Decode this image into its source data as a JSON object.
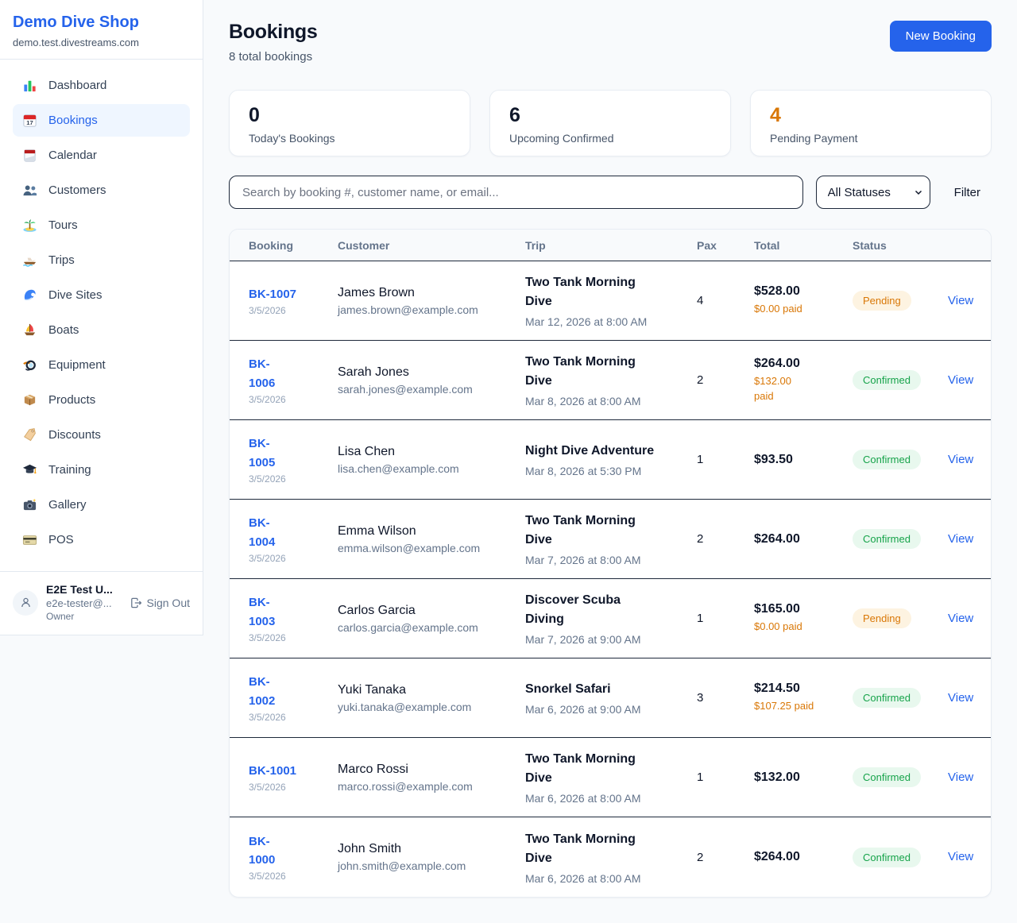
{
  "colors": {
    "accent": "#2563eb",
    "pending": "#d97706",
    "confirmed": "#16a34a"
  },
  "sidebar": {
    "brand": {
      "name": "Demo Dive Shop",
      "domain": "demo.test.divestreams.com"
    },
    "nav": [
      {
        "icon": "dashboard",
        "label": "Dashboard",
        "active": false
      },
      {
        "icon": "bookings",
        "label": "Bookings",
        "active": true
      },
      {
        "icon": "calendar",
        "label": "Calendar",
        "active": false
      },
      {
        "icon": "customers",
        "label": "Customers",
        "active": false
      },
      {
        "icon": "tours",
        "label": "Tours",
        "active": false
      },
      {
        "icon": "trips",
        "label": "Trips",
        "active": false
      },
      {
        "icon": "dive-sites",
        "label": "Dive Sites",
        "active": false
      },
      {
        "icon": "boats",
        "label": "Boats",
        "active": false
      },
      {
        "icon": "equipment",
        "label": "Equipment",
        "active": false
      },
      {
        "icon": "products",
        "label": "Products",
        "active": false
      },
      {
        "icon": "discounts",
        "label": "Discounts",
        "active": false
      },
      {
        "icon": "training",
        "label": "Training",
        "active": false
      },
      {
        "icon": "gallery",
        "label": "Gallery",
        "active": false
      },
      {
        "icon": "pos",
        "label": "POS",
        "active": false
      }
    ],
    "user": {
      "name": "E2E Test U...",
      "email": "e2e-tester@...",
      "role": "Owner",
      "signout_label": "Sign Out"
    }
  },
  "header": {
    "title": "Bookings",
    "subtitle": "8 total bookings",
    "new_booking_label": "New Booking"
  },
  "stats": [
    {
      "value": "0",
      "label": "Today's Bookings",
      "tone": ""
    },
    {
      "value": "6",
      "label": "Upcoming Confirmed",
      "tone": ""
    },
    {
      "value": "4",
      "label": "Pending Payment",
      "tone": "highlight"
    }
  ],
  "filters": {
    "search_placeholder": "Search by booking #, customer name, or email...",
    "status_selected": "All Statuses",
    "filter_label": "Filter"
  },
  "table": {
    "columns": [
      "Booking",
      "Customer",
      "Trip",
      "Pax",
      "Total",
      "Status"
    ],
    "view_label": "View",
    "rows": [
      {
        "id": "BK-1007",
        "date": "3/5/2026",
        "name": "James Brown",
        "email": "james.brown@example.com",
        "trip": "Two Tank Morning\nDive",
        "trip_datetime": "Mar 12, 2026 at 8:00 AM",
        "pax": "4",
        "total": "$528.00",
        "paid": "$0.00 paid",
        "status": "Pending",
        "status_type": "pending"
      },
      {
        "id": "BK-\n1006",
        "date": "3/5/2026",
        "name": "Sarah Jones",
        "email": "sarah.jones@example.com",
        "trip": "Two Tank Morning\nDive",
        "trip_datetime": "Mar 8, 2026 at 8:00 AM",
        "pax": "2",
        "total": "$264.00",
        "paid": "$132.00\npaid",
        "status": "Confirmed",
        "status_type": "confirmed"
      },
      {
        "id": "BK-\n1005",
        "date": "3/5/2026",
        "name": "Lisa Chen",
        "email": "lisa.chen@example.com",
        "trip": "Night Dive Adventure",
        "trip_datetime": "Mar 8, 2026 at 5:30 PM",
        "pax": "1",
        "total": "$93.50",
        "paid": "",
        "status": "Confirmed",
        "status_type": "confirmed"
      },
      {
        "id": "BK-\n1004",
        "date": "3/5/2026",
        "name": "Emma Wilson",
        "email": "emma.wilson@example.com",
        "trip": "Two Tank Morning\nDive",
        "trip_datetime": "Mar 7, 2026 at 8:00 AM",
        "pax": "2",
        "total": "$264.00",
        "paid": "",
        "status": "Confirmed",
        "status_type": "confirmed"
      },
      {
        "id": "BK-\n1003",
        "date": "3/5/2026",
        "name": "Carlos Garcia",
        "email": "carlos.garcia@example.com",
        "trip": "Discover Scuba\nDiving",
        "trip_datetime": "Mar 7, 2026 at 9:00 AM",
        "pax": "1",
        "total": "$165.00",
        "paid": "$0.00 paid",
        "status": "Pending",
        "status_type": "pending"
      },
      {
        "id": "BK-\n1002",
        "date": "3/5/2026",
        "name": "Yuki Tanaka",
        "email": "yuki.tanaka@example.com",
        "trip": "Snorkel Safari",
        "trip_datetime": "Mar 6, 2026 at 9:00 AM",
        "pax": "3",
        "total": "$214.50",
        "paid": "$107.25 paid",
        "status": "Confirmed",
        "status_type": "confirmed"
      },
      {
        "id": "BK-1001",
        "date": "3/5/2026",
        "name": "Marco Rossi",
        "email": "marco.rossi@example.com",
        "trip": "Two Tank Morning\nDive",
        "trip_datetime": "Mar 6, 2026 at 8:00 AM",
        "pax": "1",
        "total": "$132.00",
        "paid": "",
        "status": "Confirmed",
        "status_type": "confirmed"
      },
      {
        "id": "BK-\n1000",
        "date": "3/5/2026",
        "name": "John Smith",
        "email": "john.smith@example.com",
        "trip": "Two Tank Morning\nDive",
        "trip_datetime": "Mar 6, 2026 at 8:00 AM",
        "pax": "2",
        "total": "$264.00",
        "paid": "",
        "status": "Confirmed",
        "status_type": "confirmed"
      }
    ]
  }
}
